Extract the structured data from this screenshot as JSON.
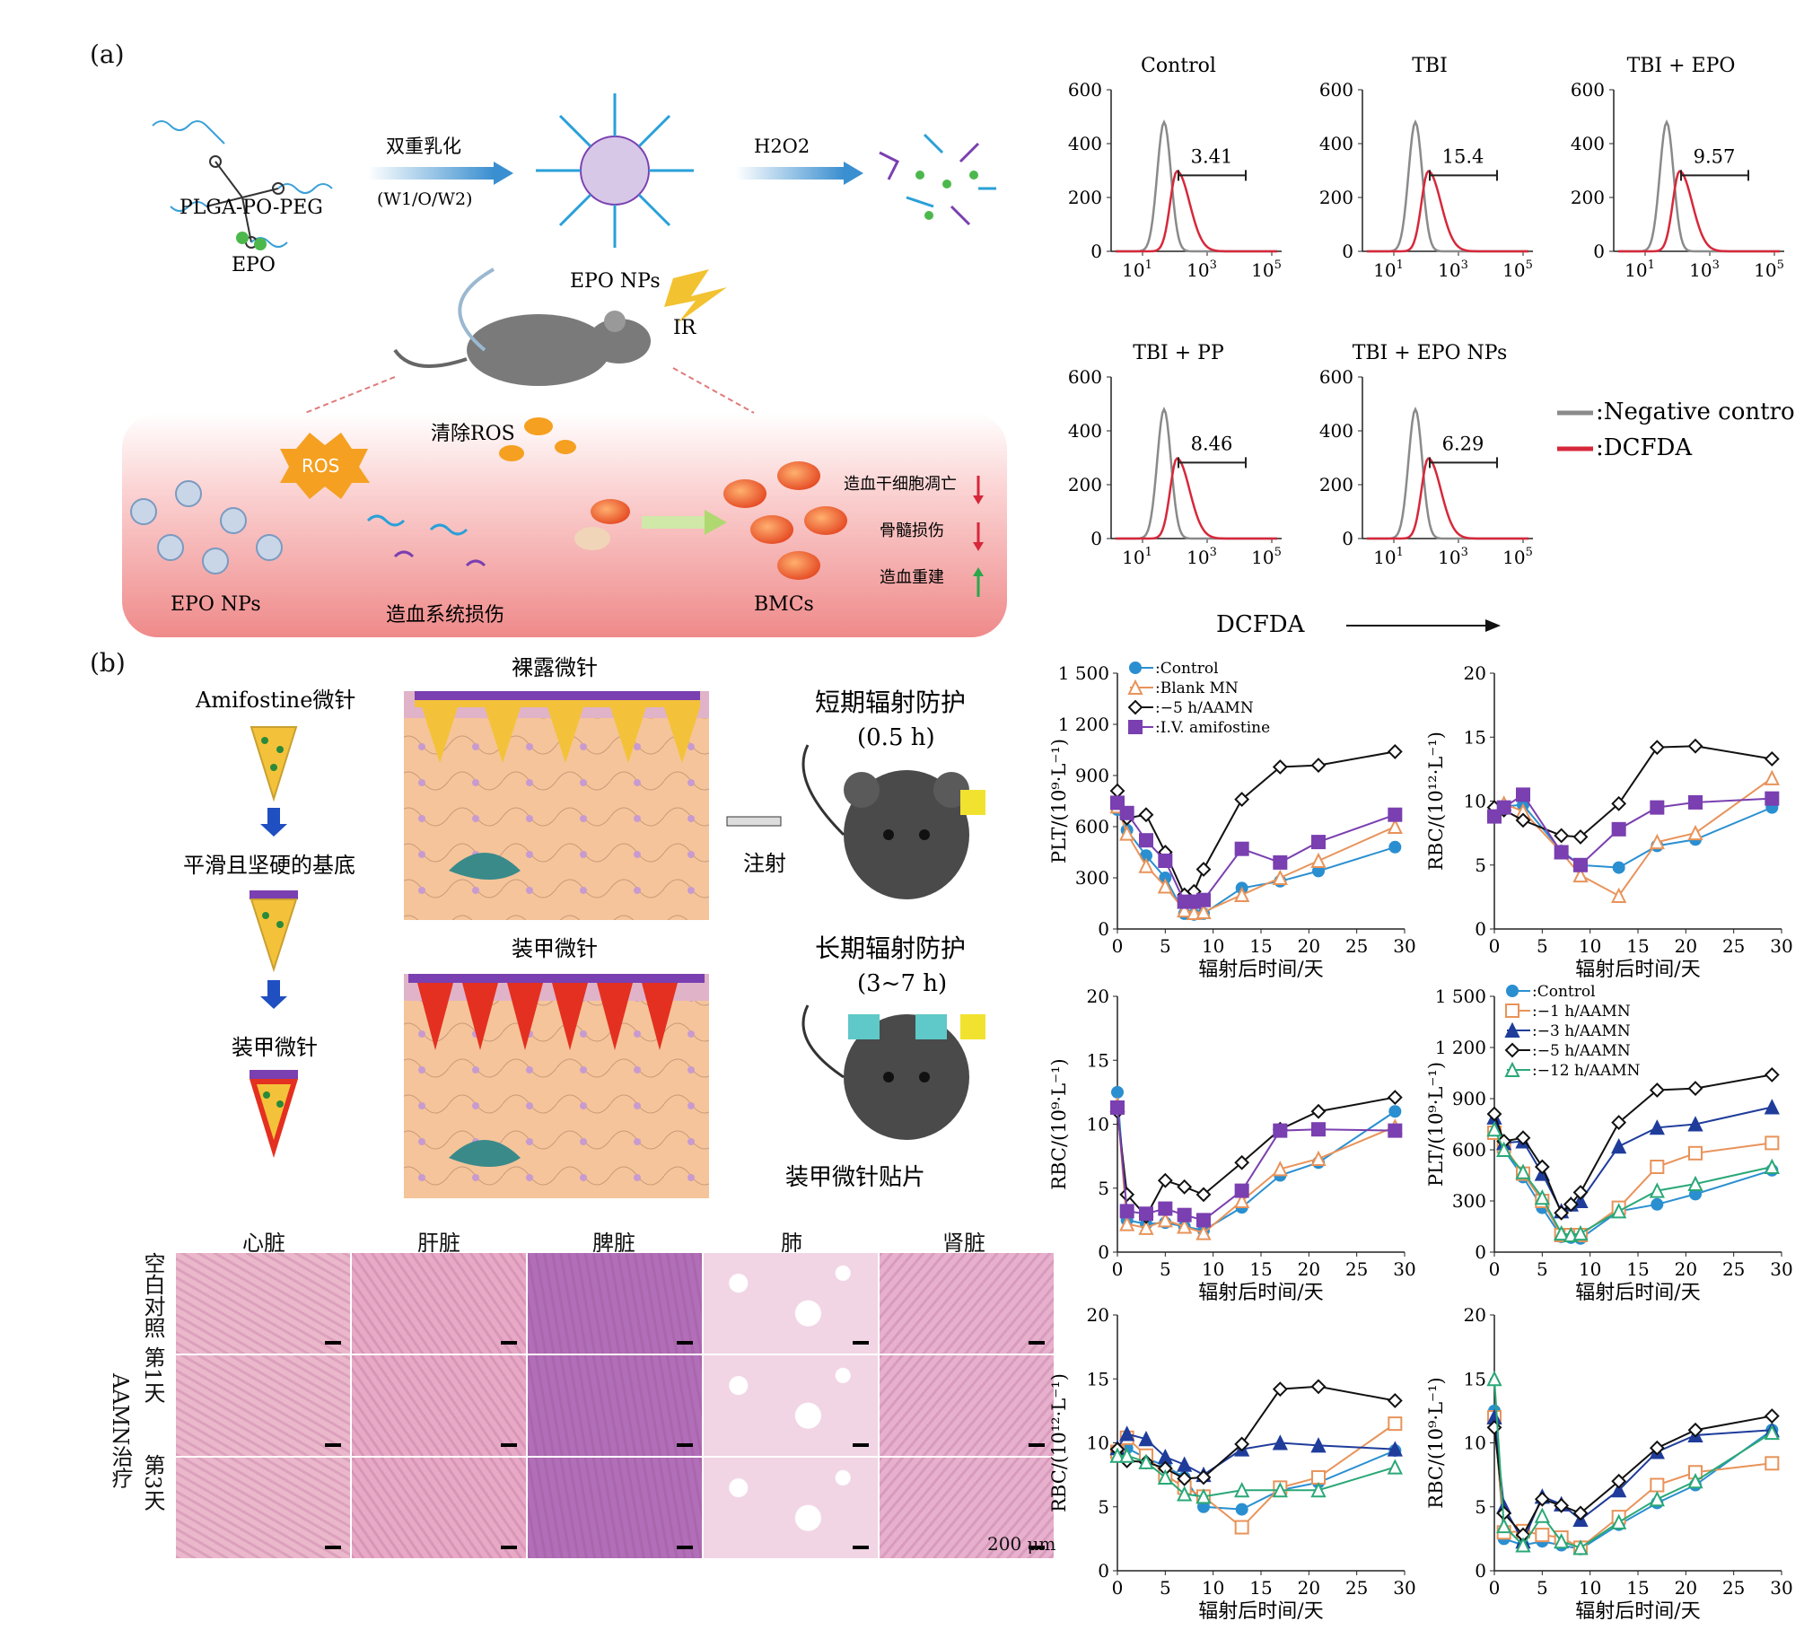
{
  "labels": {
    "a": "(a)",
    "b": "(b)"
  },
  "scheme_a": {
    "polymer": "PLGA-PO-PEG",
    "drug": "EPO",
    "step1_label": "双重乳化",
    "step1_sub": "(W1/O/W2)",
    "h2o2": "H2O2",
    "nps": "EPO NPs",
    "ir": "IR",
    "ros": "ROS",
    "clear_ros": "清除ROS",
    "nps_bottom": "EPO NPs",
    "damage": "造血系统损伤",
    "bmcs": "BMCs",
    "effects": [
      "造血干细胞凋亡",
      "骨髓损伤",
      "造血重建"
    ],
    "effect_dirs": [
      "down",
      "down",
      "up"
    ]
  },
  "flow": {
    "xlabel": "DCFDA",
    "legend": [
      ":Negative control",
      ":DCFDA"
    ],
    "colors": {
      "neg": "#8a8a8a",
      "pos": "#d6283a"
    },
    "yticks": [
      "600",
      "400",
      "200",
      "0"
    ],
    "xticks": [
      "10",
      "10",
      "10"
    ],
    "xtick_exps": [
      "1",
      "3",
      "5"
    ],
    "panels": [
      {
        "title": "Control",
        "value": "3.41"
      },
      {
        "title": "TBI",
        "value": "15.4"
      },
      {
        "title": "TBI + EPO",
        "value": "9.57"
      },
      {
        "title": "TBI + PP",
        "value": "8.46"
      },
      {
        "title": "TBI + EPO NPs",
        "value": "6.29"
      }
    ]
  },
  "scheme_b": {
    "amifostine_mn": "Amifostine微针",
    "substrate": "平滑且坚硬的基底",
    "armored_mn": "装甲微针",
    "bare_mn_title": "裸露微针",
    "armored_mn_title": "装甲微针",
    "short_term": "短期辐射防护",
    "short_time": "(0.5 h)",
    "inject": "注射",
    "long_term": "长期辐射防护",
    "long_time": "(3~7 h)",
    "patch": "装甲微针贴片"
  },
  "histology": {
    "organs": [
      "心脏",
      "肝脏",
      "脾脏",
      "肺",
      "肾脏"
    ],
    "rows": [
      "空白对照",
      "第1天",
      "第3天"
    ],
    "group": "AAMN治疗",
    "scale": "200 μm"
  },
  "charts_text": {
    "xlabel": "辐射后时间/天",
    "xticks": [
      "0",
      "5",
      "10",
      "15",
      "20",
      "25",
      "30"
    ],
    "plt_yticks": [
      "1 500",
      "1 200",
      "900",
      "600",
      "300",
      "0"
    ],
    "rbc_yticks": [
      "20",
      "15",
      "10",
      "5",
      "0"
    ],
    "plt_ylabel": "PLT/(10⁹·L⁻¹)",
    "rbc12_ylabel": "RBC/(10¹²·L⁻¹)",
    "rbc9_ylabel": "RBC/(10⁹·L⁻¹)",
    "legend1": [
      ":Control",
      ":Blank MN",
      ":−5 h/AAMN",
      ":I.V. amifostine"
    ],
    "legend2": [
      ":Control",
      ":−1 h/AAMN",
      ":−3 h/AAMN",
      ":−5 h/AAMN",
      ":−12 h/AAMN"
    ]
  },
  "chart_data": [
    {
      "type": "line",
      "id": "c1",
      "ylabel": "PLT/(10⁹·L⁻¹)",
      "xlabel": "辐射后时间/天",
      "xlim": [
        0,
        30
      ],
      "ylim": [
        0,
        1500
      ],
      "x": [
        0,
        1,
        3,
        5,
        7,
        8,
        9,
        13,
        17,
        21,
        29
      ],
      "series": [
        {
          "name": ":Control",
          "color": "#2a8fd0",
          "marker": "circle",
          "values": [
            700,
            580,
            430,
            300,
            90,
            85,
            90,
            240,
            280,
            340,
            480
          ]
        },
        {
          "name": ":Blank MN",
          "color": "#e8935a",
          "marker": "triangle-open",
          "values": [
            720,
            560,
            370,
            250,
            110,
            95,
            100,
            200,
            300,
            400,
            600
          ]
        },
        {
          "name": ":−5 h/AAMN",
          "color": "#111111",
          "marker": "diamond-open",
          "values": [
            810,
            650,
            670,
            450,
            200,
            220,
            350,
            760,
            950,
            960,
            1040
          ]
        },
        {
          "name": ":I.V. amifostine",
          "color": "#7a3fb0",
          "marker": "square",
          "values": [
            740,
            680,
            520,
            400,
            160,
            160,
            170,
            470,
            390,
            510,
            670
          ]
        }
      ]
    },
    {
      "type": "line",
      "id": "c2",
      "ylabel": "RBC/(10¹²·L⁻¹)",
      "xlabel": "辐射后时间/天",
      "xlim": [
        0,
        30
      ],
      "ylim": [
        0,
        20
      ],
      "x": [
        0,
        1,
        3,
        7,
        9,
        13,
        17,
        21,
        29
      ],
      "series": [
        {
          "name": ":Control",
          "color": "#2a8fd0",
          "marker": "circle",
          "values": [
            9.1,
            9.6,
            9.7,
            6.1,
            5.0,
            4.8,
            6.5,
            7.0,
            9.5
          ]
        },
        {
          "name": ":Blank MN",
          "color": "#e8935a",
          "marker": "triangle-open",
          "values": [
            9.3,
            9.8,
            9.2,
            6.0,
            4.2,
            2.6,
            6.8,
            7.5,
            11.8
          ]
        },
        {
          "name": ":−5 h/AAMN",
          "color": "#111111",
          "marker": "diamond-open",
          "values": [
            9.5,
            9.3,
            8.5,
            7.3,
            7.2,
            9.8,
            14.2,
            14.3,
            13.3
          ]
        },
        {
          "name": ":I.V. amifostine",
          "color": "#7a3fb0",
          "marker": "square",
          "values": [
            8.8,
            9.5,
            10.5,
            6.0,
            5.0,
            7.8,
            9.5,
            9.9,
            10.2
          ]
        }
      ]
    },
    {
      "type": "line",
      "id": "c3",
      "ylabel": "RBC/(10⁹·L⁻¹)",
      "xlabel": "辐射后时间/天",
      "xlim": [
        0,
        30
      ],
      "ylim": [
        0,
        20
      ],
      "x": [
        0,
        1,
        3,
        5,
        7,
        9,
        13,
        17,
        21,
        29
      ],
      "series": [
        {
          "name": ":Control",
          "color": "#2a8fd0",
          "marker": "circle",
          "values": [
            12.5,
            2.5,
            2.2,
            2.3,
            2.0,
            1.7,
            3.5,
            6.0,
            7.0,
            11.0
          ]
        },
        {
          "name": ":Blank MN",
          "color": "#e8935a",
          "marker": "triangle-open",
          "values": [
            11.5,
            2.2,
            1.9,
            2.5,
            2.0,
            1.5,
            4.0,
            6.5,
            7.3,
            9.8
          ]
        },
        {
          "name": ":−5 h/AAMN",
          "color": "#111111",
          "marker": "diamond-open",
          "values": [
            11.0,
            4.5,
            2.8,
            5.6,
            5.1,
            4.5,
            7.0,
            9.6,
            11.0,
            12.1
          ]
        },
        {
          "name": ":I.V. amifostine",
          "color": "#7a3fb0",
          "marker": "square",
          "values": [
            11.3,
            3.2,
            3.0,
            3.4,
            2.9,
            2.5,
            4.8,
            9.5,
            9.6,
            9.5
          ]
        }
      ]
    },
    {
      "type": "line",
      "id": "c4",
      "ylabel": "PLT/(10⁹·L⁻¹)",
      "xlabel": "辐射后时间/天",
      "xlim": [
        0,
        30
      ],
      "ylim": [
        0,
        1500
      ],
      "x": [
        0,
        1,
        3,
        5,
        7,
        8,
        9,
        13,
        17,
        21,
        29
      ],
      "series": [
        {
          "name": ":Control",
          "color": "#2a8fd0",
          "marker": "circle",
          "values": [
            700,
            600,
            440,
            260,
            90,
            85,
            80,
            240,
            280,
            340,
            480
          ]
        },
        {
          "name": ":−1 h/AAMN",
          "color": "#e8935a",
          "marker": "square-open",
          "values": [
            700,
            620,
            460,
            300,
            100,
            100,
            100,
            260,
            500,
            580,
            640
          ]
        },
        {
          "name": ":−3 h/AAMN",
          "color": "#1f3c9b",
          "marker": "triangle",
          "values": [
            790,
            640,
            650,
            460,
            240,
            280,
            300,
            620,
            730,
            750,
            850
          ]
        },
        {
          "name": ":−5 h/AAMN",
          "color": "#111111",
          "marker": "diamond-open",
          "values": [
            810,
            650,
            670,
            500,
            230,
            280,
            350,
            760,
            950,
            960,
            1040
          ]
        },
        {
          "name": ":−12 h/AAMN",
          "color": "#2aa877",
          "marker": "triangle-open",
          "values": [
            720,
            600,
            470,
            320,
            110,
            100,
            110,
            240,
            360,
            400,
            500
          ]
        }
      ]
    },
    {
      "type": "line",
      "id": "c5",
      "ylabel": "RBC/(10¹²·L⁻¹)",
      "xlabel": "辐射后时间/天",
      "xlim": [
        0,
        30
      ],
      "ylim": [
        0,
        20
      ],
      "x": [
        0,
        1,
        3,
        5,
        7,
        9,
        13,
        17,
        21,
        29
      ],
      "series": [
        {
          "name": ":Control",
          "color": "#2a8fd0",
          "marker": "circle",
          "values": [
            9.1,
            9.6,
            8.8,
            8.2,
            7.3,
            5.0,
            4.8,
            6.3,
            6.9,
            9.4
          ]
        },
        {
          "name": ":−1 h/AAMN",
          "color": "#e8935a",
          "marker": "square-open",
          "values": [
            9.3,
            10.4,
            9.0,
            7.5,
            6.5,
            5.8,
            3.4,
            6.5,
            7.3,
            11.5
          ]
        },
        {
          "name": ":−3 h/AAMN",
          "color": "#1f3c9b",
          "marker": "triangle",
          "values": [
            9.6,
            10.7,
            10.3,
            8.9,
            8.3,
            7.5,
            9.5,
            10.0,
            9.8,
            9.5
          ]
        },
        {
          "name": ":−5 h/AAMN",
          "color": "#111111",
          "marker": "diamond-open",
          "values": [
            9.5,
            8.6,
            8.5,
            8.0,
            7.2,
            7.3,
            9.9,
            14.2,
            14.4,
            13.3
          ]
        },
        {
          "name": ":−12 h/AAMN",
          "color": "#2aa877",
          "marker": "triangle-open",
          "values": [
            9.0,
            9.0,
            8.5,
            7.3,
            6.0,
            5.8,
            6.3,
            6.3,
            6.3,
            8.1
          ]
        }
      ]
    },
    {
      "type": "line",
      "id": "c6",
      "ylabel": "RBC/(10⁹·L⁻¹)",
      "xlabel": "辐射后时间/天",
      "xlim": [
        0,
        30
      ],
      "ylim": [
        0,
        20
      ],
      "x": [
        0,
        1,
        3,
        5,
        7,
        9,
        13,
        17,
        21,
        29
      ],
      "series": [
        {
          "name": ":Control",
          "color": "#2a8fd0",
          "marker": "circle",
          "values": [
            12.5,
            2.5,
            2.0,
            2.3,
            2.0,
            1.7,
            3.6,
            5.3,
            6.7,
            11.0
          ]
        },
        {
          "name": ":−1 h/AAMN",
          "color": "#e8935a",
          "marker": "square-open",
          "values": [
            12.0,
            3.0,
            3.1,
            2.8,
            2.6,
            1.8,
            4.2,
            6.7,
            7.7,
            8.4
          ]
        },
        {
          "name": ":−3 h/AAMN",
          "color": "#1f3c9b",
          "marker": "triangle",
          "values": [
            12.0,
            5.0,
            2.3,
            5.8,
            5.2,
            4.0,
            6.3,
            9.3,
            10.6,
            11.0
          ]
        },
        {
          "name": ":−5 h/AAMN",
          "color": "#111111",
          "marker": "diamond-open",
          "values": [
            11.2,
            4.5,
            2.8,
            5.6,
            5.1,
            4.5,
            7.0,
            9.6,
            11.0,
            12.1
          ]
        },
        {
          "name": ":−12 h/AAMN",
          "color": "#2aa877",
          "marker": "triangle-open",
          "values": [
            15.0,
            3.5,
            2.0,
            4.3,
            2.3,
            1.8,
            3.8,
            5.6,
            7.0,
            10.8
          ]
        }
      ]
    }
  ]
}
